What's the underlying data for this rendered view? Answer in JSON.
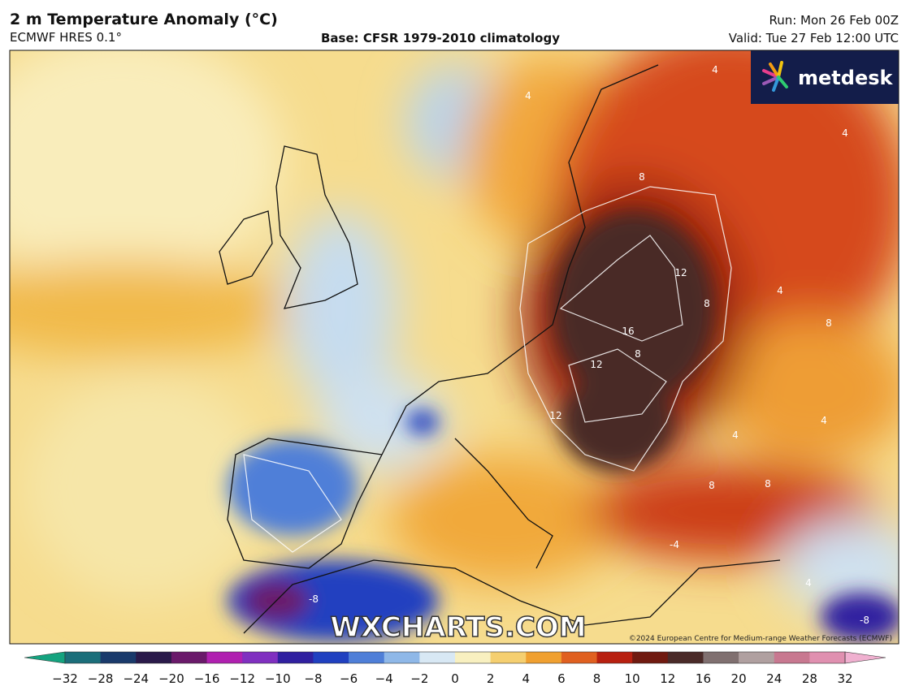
{
  "header": {
    "title": "2 m Temperature Anomaly (°C)",
    "model": "ECMWF HRES 0.1°",
    "base": "Base: CFSR 1979-2010 climatology",
    "run": "Run: Mon 26 Feb 00Z",
    "valid": "Valid: Tue 27 Feb 12:00 UTC"
  },
  "map": {
    "logo": "metdesk",
    "watermark": "WXCHARTS.COM",
    "copyright": "©2024 European Centre for Medium-range Weather Forecasts (ECMWF)",
    "contour_labels": [
      "4",
      "4",
      "4",
      "4",
      "8",
      "8",
      "12",
      "16",
      "12",
      "12",
      "8",
      "4",
      "8",
      "4",
      "8",
      "-4",
      "-8",
      "-8",
      "4",
      "8"
    ]
  },
  "colorbar": {
    "labels": [
      "−32",
      "−28",
      "−24",
      "−20",
      "−16",
      "−12",
      "−10",
      "−8",
      "−6",
      "−4",
      "−2",
      "0",
      "2",
      "4",
      "6",
      "8",
      "10",
      "12",
      "16",
      "20",
      "24",
      "28",
      "32"
    ],
    "colors": [
      "#14a37f",
      "#1b6e7a",
      "#1a3a6b",
      "#2a1a4a",
      "#6a1a6a",
      "#b020b0",
      "#8030c0",
      "#3020a0",
      "#2040c0",
      "#4f7fd8",
      "#8fb8e8",
      "#d8e8f4",
      "#f8f0c0",
      "#f5cf70",
      "#f0a030",
      "#e06020",
      "#b82010",
      "#701a10",
      "#4a2a28",
      "#807070",
      "#b0a0a0",
      "#c87890",
      "#e090b0",
      "#f0b0d0"
    ]
  }
}
